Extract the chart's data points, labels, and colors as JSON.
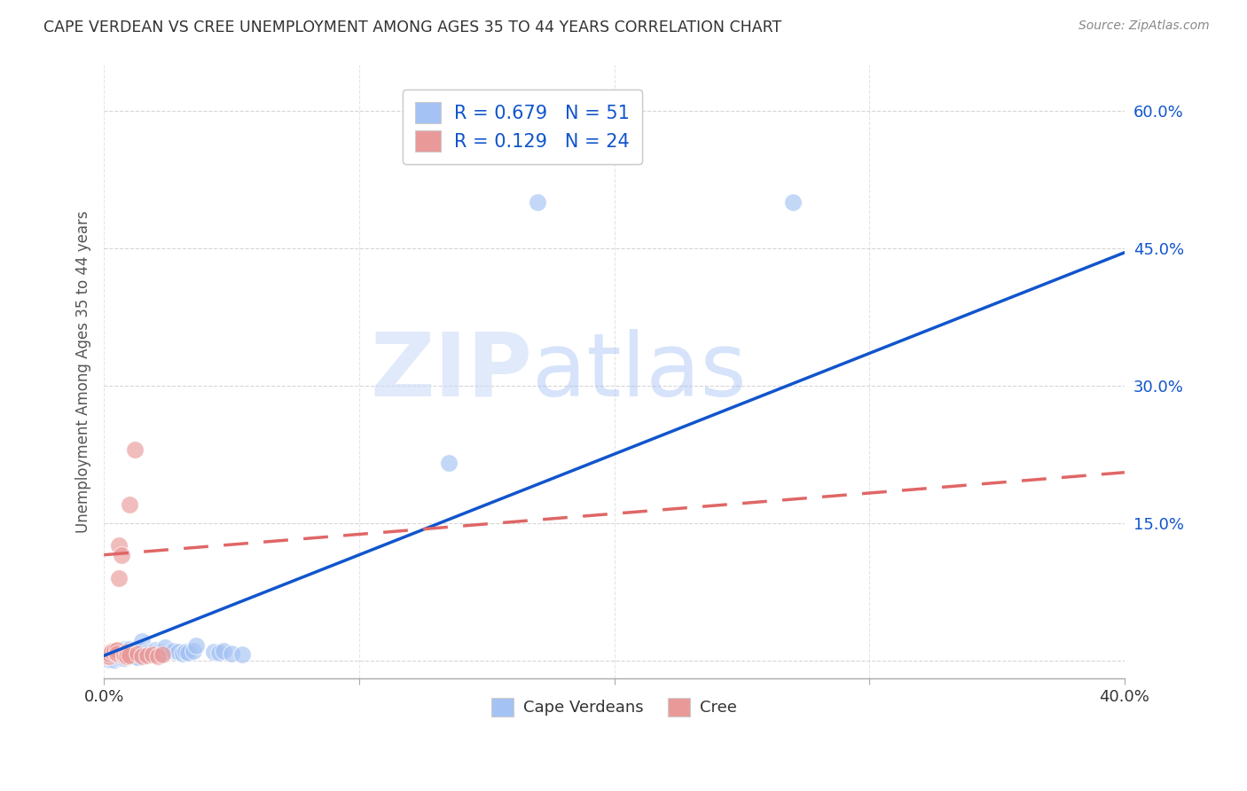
{
  "title": "CAPE VERDEAN VS CREE UNEMPLOYMENT AMONG AGES 35 TO 44 YEARS CORRELATION CHART",
  "source": "Source: ZipAtlas.com",
  "ylabel": "Unemployment Among Ages 35 to 44 years",
  "xlim": [
    0,
    0.4
  ],
  "ylim": [
    -0.02,
    0.65
  ],
  "xticks": [
    0.0,
    0.1,
    0.2,
    0.3,
    0.4
  ],
  "xticklabels": [
    "0.0%",
    "",
    "",
    "",
    "40.0%"
  ],
  "ytick_positions": [
    0.0,
    0.15,
    0.3,
    0.45,
    0.6
  ],
  "ytick_labels": [
    "",
    "15.0%",
    "30.0%",
    "45.0%",
    "60.0%"
  ],
  "watermark_zip": "ZIP",
  "watermark_atlas": "atlas",
  "legend_r1": "0.679",
  "legend_n1": "51",
  "legend_r2": "0.129",
  "legend_n2": "24",
  "blue_color": "#a4c2f4",
  "pink_color": "#ea9999",
  "blue_line_color": "#1155cc",
  "pink_line_color": "#e06666",
  "blue_scatter": [
    [
      0.001,
      0.002
    ],
    [
      0.002,
      0.001
    ],
    [
      0.002,
      0.003
    ],
    [
      0.003,
      0.004
    ],
    [
      0.003,
      0.001
    ],
    [
      0.004,
      0.002
    ],
    [
      0.004,
      0.001
    ],
    [
      0.005,
      0.003
    ],
    [
      0.005,
      0.002
    ],
    [
      0.006,
      0.004
    ],
    [
      0.006,
      0.006
    ],
    [
      0.007,
      0.002
    ],
    [
      0.007,
      0.007
    ],
    [
      0.008,
      0.002
    ],
    [
      0.008,
      0.012
    ],
    [
      0.009,
      0.005
    ],
    [
      0.009,
      0.011
    ],
    [
      0.01,
      0.004
    ],
    [
      0.01,
      0.012
    ],
    [
      0.011,
      0.009
    ],
    [
      0.012,
      0.012
    ],
    [
      0.012,
      0.004
    ],
    [
      0.013,
      0.003
    ],
    [
      0.013,
      0.012
    ],
    [
      0.014,
      0.009
    ],
    [
      0.015,
      0.011
    ],
    [
      0.015,
      0.021
    ],
    [
      0.016,
      0.007
    ],
    [
      0.017,
      0.009
    ],
    [
      0.018,
      0.008
    ],
    [
      0.019,
      0.007
    ],
    [
      0.02,
      0.011
    ],
    [
      0.021,
      0.009
    ],
    [
      0.022,
      0.007
    ],
    [
      0.023,
      0.008
    ],
    [
      0.024,
      0.014
    ],
    [
      0.027,
      0.01
    ],
    [
      0.029,
      0.009
    ],
    [
      0.031,
      0.007
    ],
    [
      0.032,
      0.009
    ],
    [
      0.033,
      0.008
    ],
    [
      0.035,
      0.01
    ],
    [
      0.036,
      0.016
    ],
    [
      0.043,
      0.009
    ],
    [
      0.045,
      0.008
    ],
    [
      0.047,
      0.01
    ],
    [
      0.05,
      0.007
    ],
    [
      0.054,
      0.006
    ],
    [
      0.17,
      0.5
    ],
    [
      0.27,
      0.5
    ],
    [
      0.135,
      0.215
    ]
  ],
  "pink_scatter": [
    [
      0.001,
      0.004
    ],
    [
      0.002,
      0.004
    ],
    [
      0.002,
      0.007
    ],
    [
      0.003,
      0.01
    ],
    [
      0.003,
      0.009
    ],
    [
      0.004,
      0.01
    ],
    [
      0.005,
      0.011
    ],
    [
      0.005,
      0.007
    ],
    [
      0.006,
      0.125
    ],
    [
      0.006,
      0.09
    ],
    [
      0.007,
      0.115
    ],
    [
      0.008,
      0.004
    ],
    [
      0.008,
      0.006
    ],
    [
      0.009,
      0.009
    ],
    [
      0.009,
      0.004
    ],
    [
      0.01,
      0.005
    ],
    [
      0.01,
      0.17
    ],
    [
      0.012,
      0.23
    ],
    [
      0.013,
      0.007
    ],
    [
      0.015,
      0.004
    ],
    [
      0.017,
      0.005
    ],
    [
      0.019,
      0.006
    ],
    [
      0.021,
      0.004
    ],
    [
      0.023,
      0.006
    ]
  ],
  "blue_regline": [
    0.0,
    0.4,
    0.005,
    0.445
  ],
  "pink_regline": [
    0.0,
    0.4,
    0.115,
    0.205
  ],
  "background_color": "#ffffff",
  "grid_color": "#cccccc"
}
